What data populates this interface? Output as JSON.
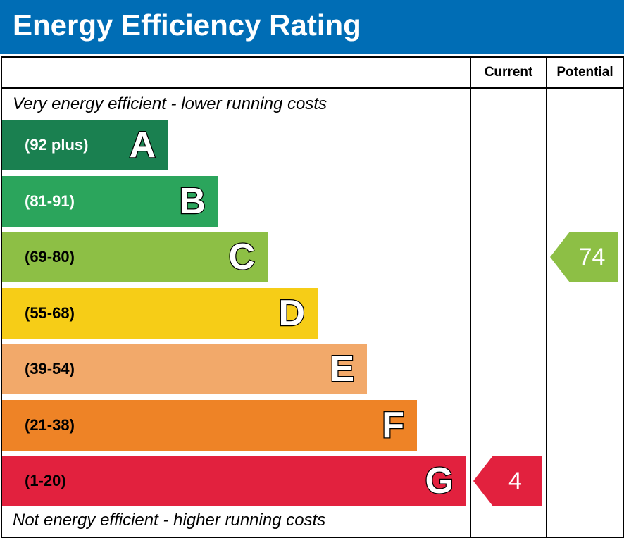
{
  "header": {
    "title": "Energy Efficiency Rating"
  },
  "columns": {
    "current": "Current",
    "potential": "Potential"
  },
  "notes": {
    "top": "Very energy efficient - lower running costs",
    "bottom": "Not energy efficient - higher running costs"
  },
  "chart_data": {
    "type": "bar",
    "title": "Energy Efficiency Rating",
    "categories": [
      "A",
      "B",
      "C",
      "D",
      "E",
      "F",
      "G"
    ],
    "bands": [
      {
        "letter": "A",
        "range": "(92 plus)",
        "color": "#1a8050",
        "text_color": "#ffffff"
      },
      {
        "letter": "B",
        "range": "(81-91)",
        "color": "#2ba55c",
        "text_color": "#ffffff"
      },
      {
        "letter": "C",
        "range": "(69-80)",
        "color": "#8dbf45",
        "text_color": "#000000"
      },
      {
        "letter": "D",
        "range": "(55-68)",
        "color": "#f6cd17",
        "text_color": "#000000"
      },
      {
        "letter": "E",
        "range": "(39-54)",
        "color": "#f2a96a",
        "text_color": "#000000"
      },
      {
        "letter": "F",
        "range": "(21-38)",
        "color": "#ee8326",
        "text_color": "#000000"
      },
      {
        "letter": "G",
        "range": "(1-20)",
        "color": "#e2213e",
        "text_color": "#000000"
      }
    ],
    "current": {
      "value": "4",
      "band": "G",
      "color": "#e2213e"
    },
    "potential": {
      "value": "74",
      "band": "C",
      "color": "#8dbf45"
    }
  }
}
